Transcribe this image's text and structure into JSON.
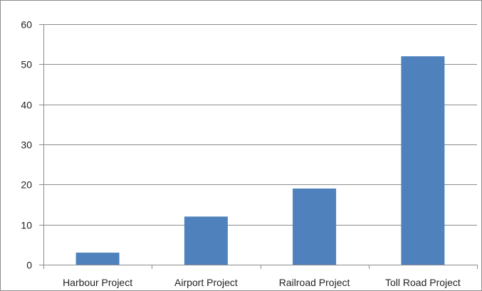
{
  "chart_data": {
    "type": "bar",
    "title": "",
    "xlabel": "",
    "ylabel": "",
    "categories": [
      "Harbour Project",
      "Airport Project",
      "Railroad Project",
      "Toll Road Project"
    ],
    "series": [
      {
        "values": [
          3,
          12,
          19,
          52
        ],
        "color": "#4f81bd"
      }
    ],
    "ylim": [
      0,
      60
    ],
    "yticks": [
      0,
      10,
      20,
      30,
      40,
      50,
      60
    ],
    "grid": true,
    "legend": "none"
  }
}
